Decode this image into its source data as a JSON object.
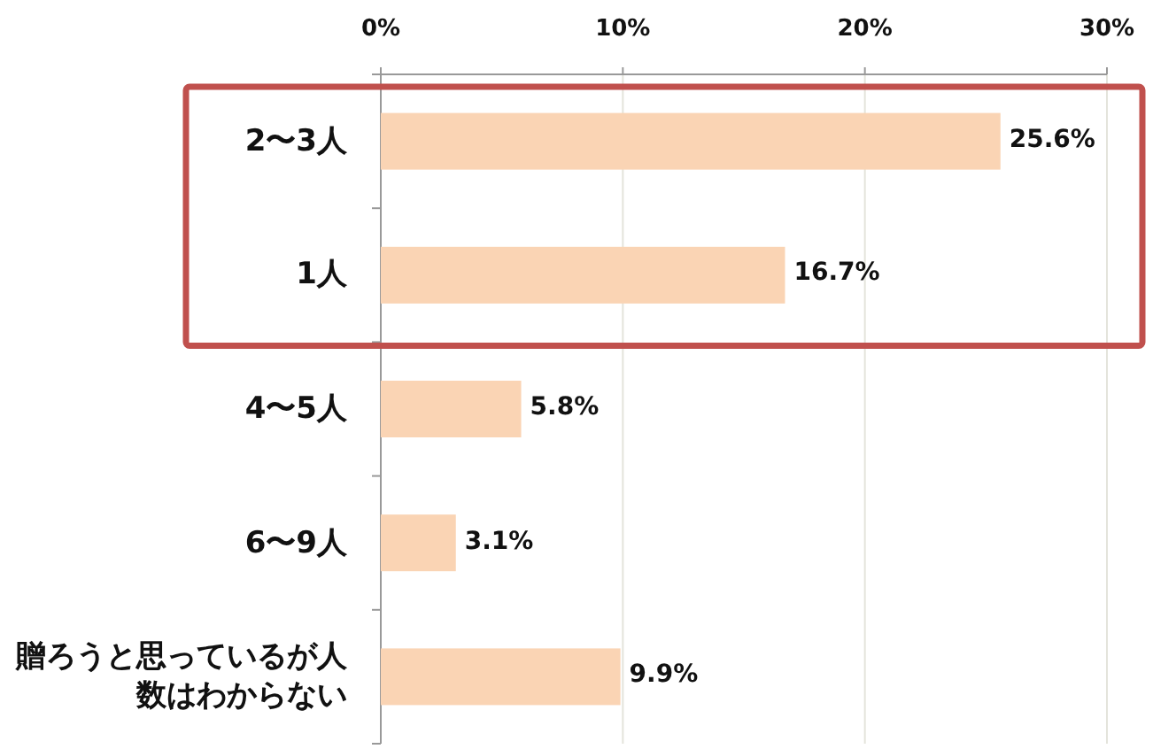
{
  "chart_data": {
    "type": "bar",
    "orientation": "horizontal",
    "categories": [
      "2〜3人",
      "1人",
      "4〜5人",
      "6〜9人",
      "贈ろうと思っているが人数はわからない"
    ],
    "values": [
      25.6,
      16.7,
      5.8,
      3.1,
      9.9
    ],
    "value_labels": [
      "25.6%",
      "16.7%",
      "5.8%",
      "3.1%",
      "9.9%"
    ],
    "color": "#fad4b4",
    "xlim": [
      0,
      30
    ],
    "xticks": [
      {
        "value": 0,
        "label": "0%"
      },
      {
        "value": 10,
        "label": "10%"
      },
      {
        "value": 20,
        "label": "20%"
      },
      {
        "value": 30,
        "label": "30%"
      }
    ],
    "grid": "x"
  }
}
